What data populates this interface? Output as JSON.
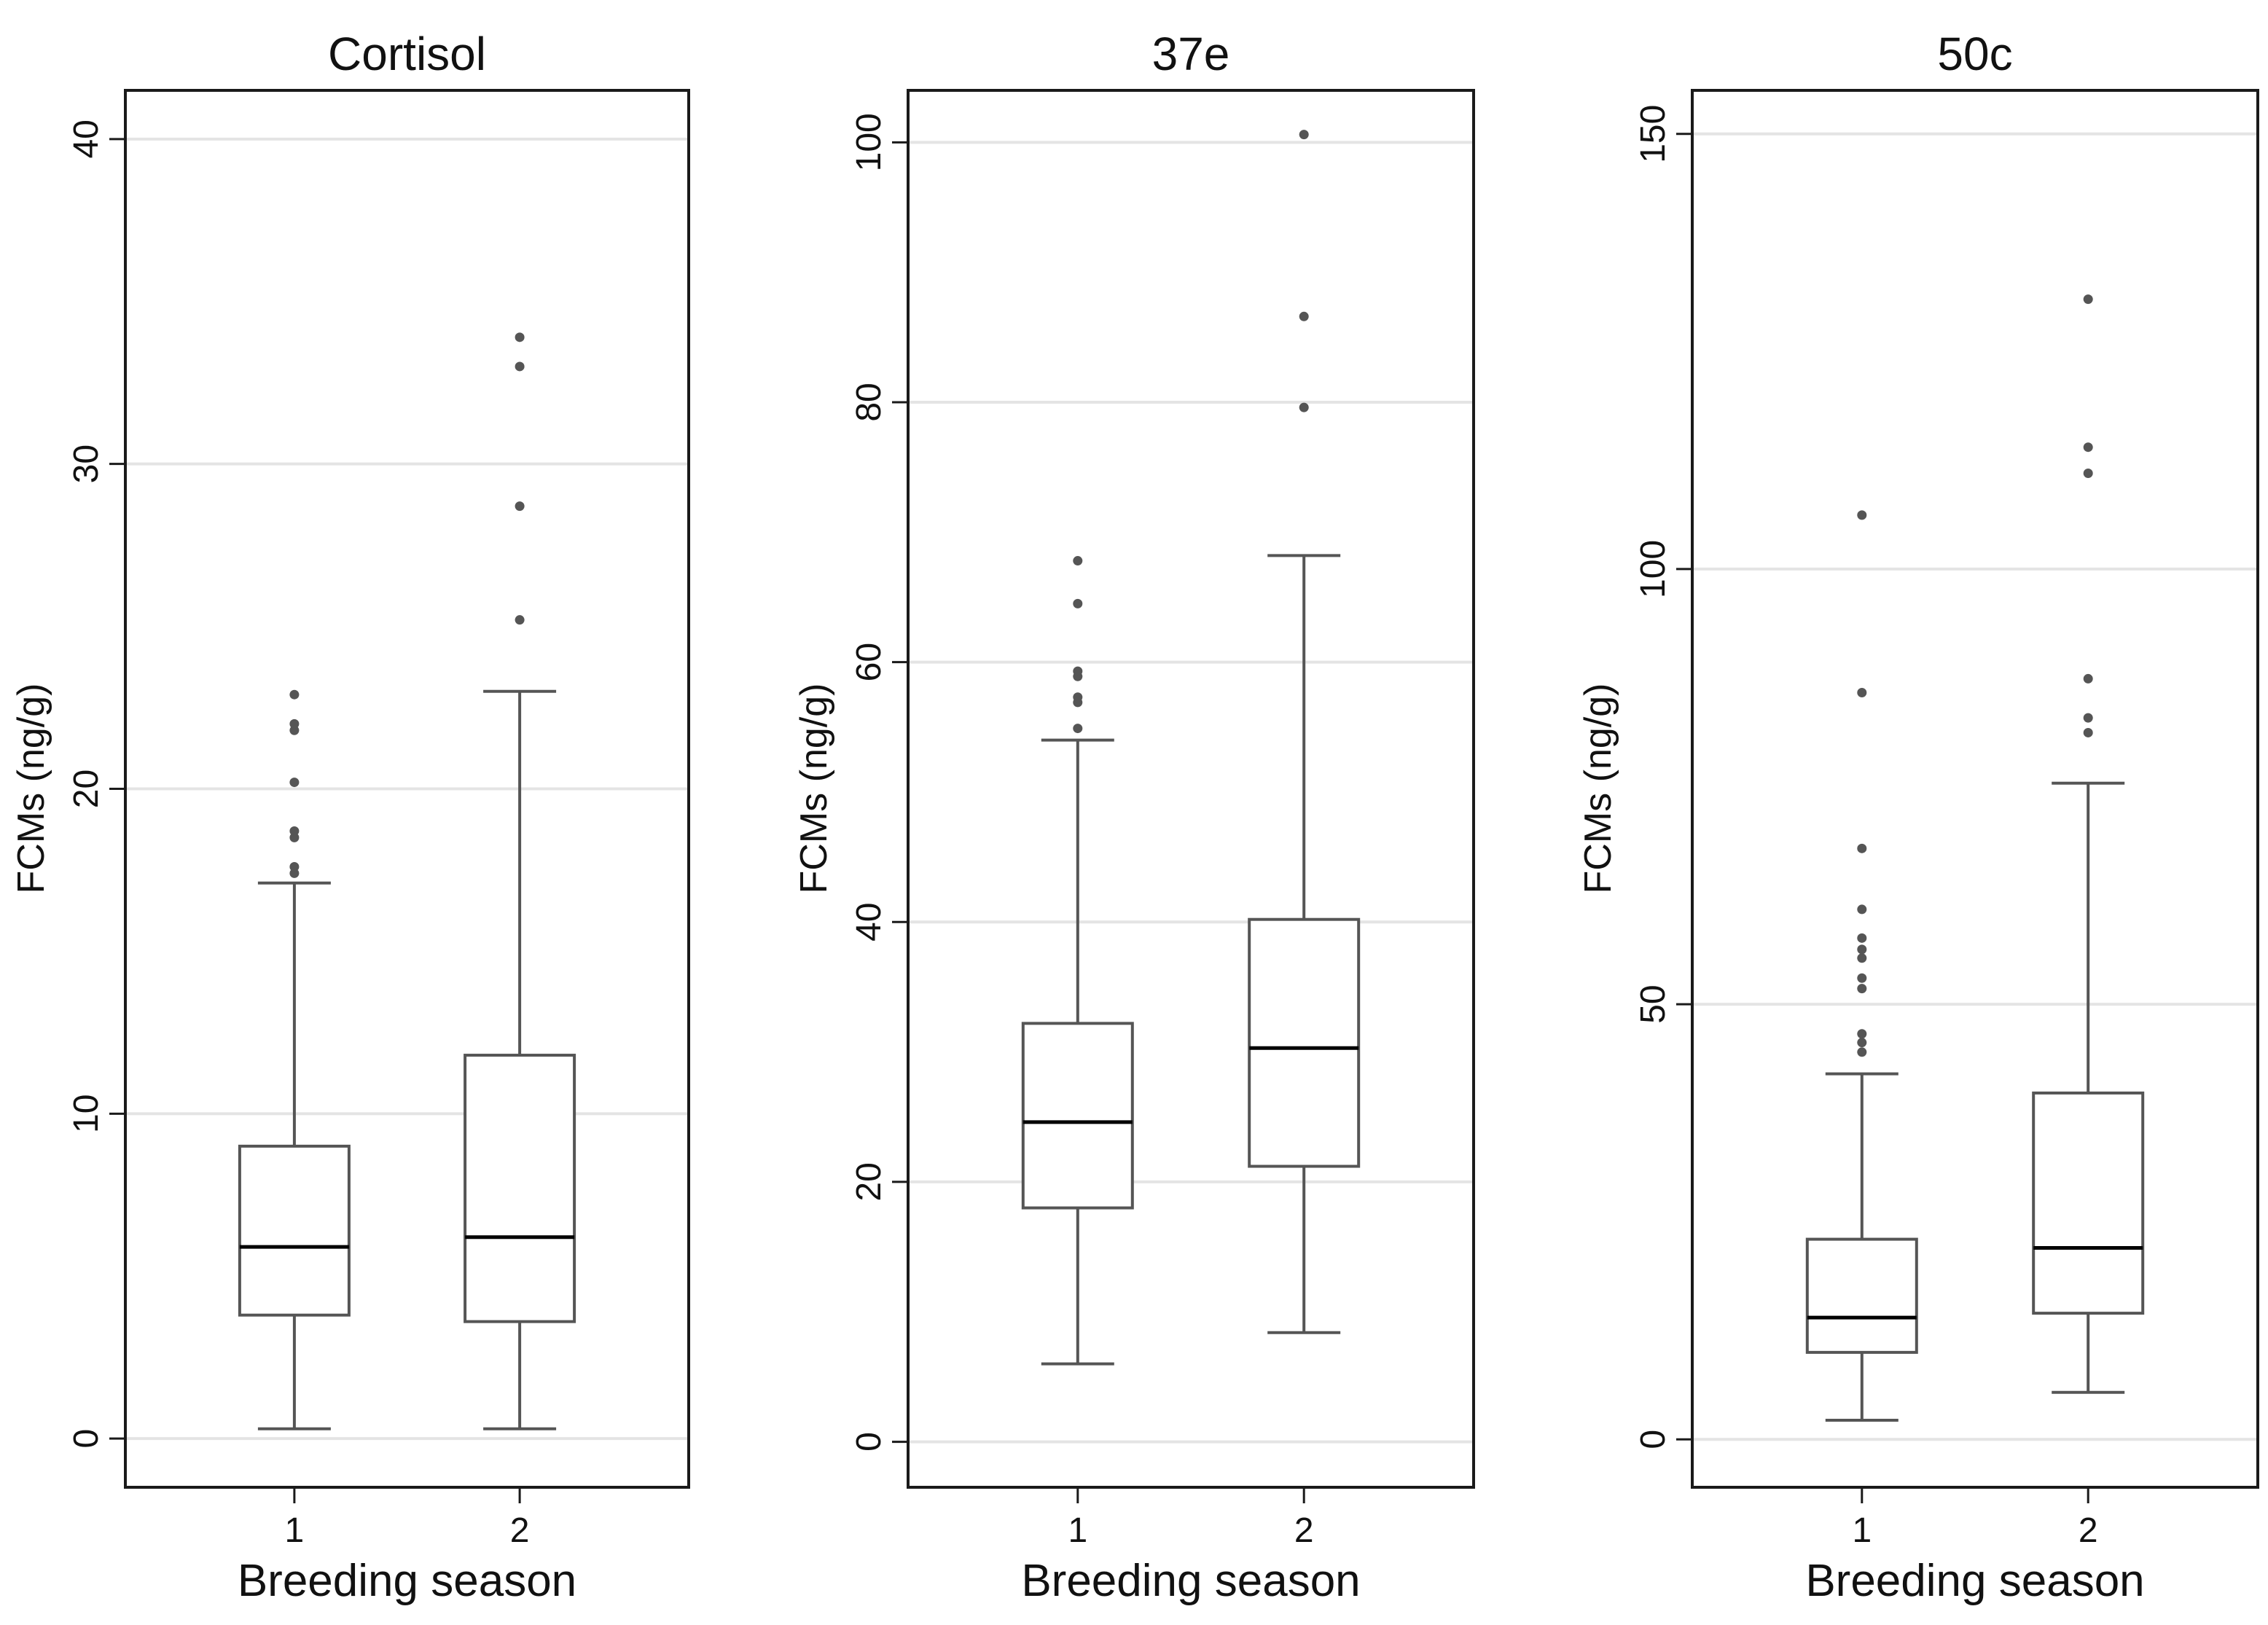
{
  "figure": {
    "colors": {
      "background": "#ffffff",
      "frame": "#1a1a1a",
      "box": "#555555",
      "median": "#000000",
      "outlier": "#555555",
      "grid": "#e4e4e4"
    }
  },
  "chart_data": [
    {
      "type": "box",
      "title": "Cortisol",
      "xlabel": "Breeding season",
      "ylabel": "FCMs (ng/g)",
      "ylim": [
        -1.5,
        41.5
      ],
      "yticks": [
        0,
        10,
        20,
        30,
        40
      ],
      "grid": true,
      "categories": [
        "1",
        "2"
      ],
      "boxes": [
        {
          "category": "1",
          "whisker_low": 0.3,
          "q1": 3.8,
          "median": 5.9,
          "q3": 9.0,
          "whisker_high": 17.1,
          "outliers": [
            17.4,
            17.6,
            18.5,
            18.7,
            20.2,
            21.8,
            22.0,
            22.9
          ]
        },
        {
          "category": "2",
          "whisker_low": 0.3,
          "q1": 3.6,
          "median": 6.2,
          "q3": 11.8,
          "whisker_high": 23.0,
          "outliers": [
            25.2,
            28.7,
            33.0,
            33.9
          ]
        }
      ]
    },
    {
      "type": "box",
      "title": "37e",
      "xlabel": "Breeding season",
      "ylabel": "FCMs (ng/g)",
      "ylim": [
        -3.5,
        104
      ],
      "yticks": [
        0,
        20,
        40,
        60,
        80,
        100
      ],
      "grid": true,
      "categories": [
        "1",
        "2"
      ],
      "boxes": [
        {
          "category": "1",
          "whisker_low": 6.0,
          "q1": 18.0,
          "median": 24.6,
          "q3": 32.2,
          "whisker_high": 54.0,
          "outliers": [
            54.9,
            56.9,
            57.3,
            58.9,
            59.3,
            64.5,
            67.8
          ]
        },
        {
          "category": "2",
          "whisker_low": 8.4,
          "q1": 21.2,
          "median": 30.3,
          "q3": 40.2,
          "whisker_high": 68.2,
          "outliers": [
            79.6,
            86.6,
            100.6
          ]
        }
      ]
    },
    {
      "type": "box",
      "title": "50c",
      "xlabel": "Breeding season",
      "ylabel": "FCMs (ng/g)",
      "ylim": [
        -5.5,
        155
      ],
      "yticks": [
        0,
        50,
        100,
        150
      ],
      "grid": true,
      "categories": [
        "1",
        "2"
      ],
      "boxes": [
        {
          "category": "1",
          "whisker_low": 2.2,
          "q1": 10.0,
          "median": 14.0,
          "q3": 23.0,
          "whisker_high": 42.0,
          "outliers": [
            44.5,
            45.6,
            46.6,
            51.8,
            53.0,
            55.3,
            56.3,
            57.6,
            60.9,
            67.9,
            85.8,
            106.2
          ]
        },
        {
          "category": "2",
          "whisker_low": 5.4,
          "q1": 14.5,
          "median": 22.0,
          "q3": 39.8,
          "whisker_high": 75.4,
          "outliers": [
            81.2,
            82.9,
            87.4,
            111.0,
            114.0,
            131.0
          ]
        }
      ]
    }
  ]
}
